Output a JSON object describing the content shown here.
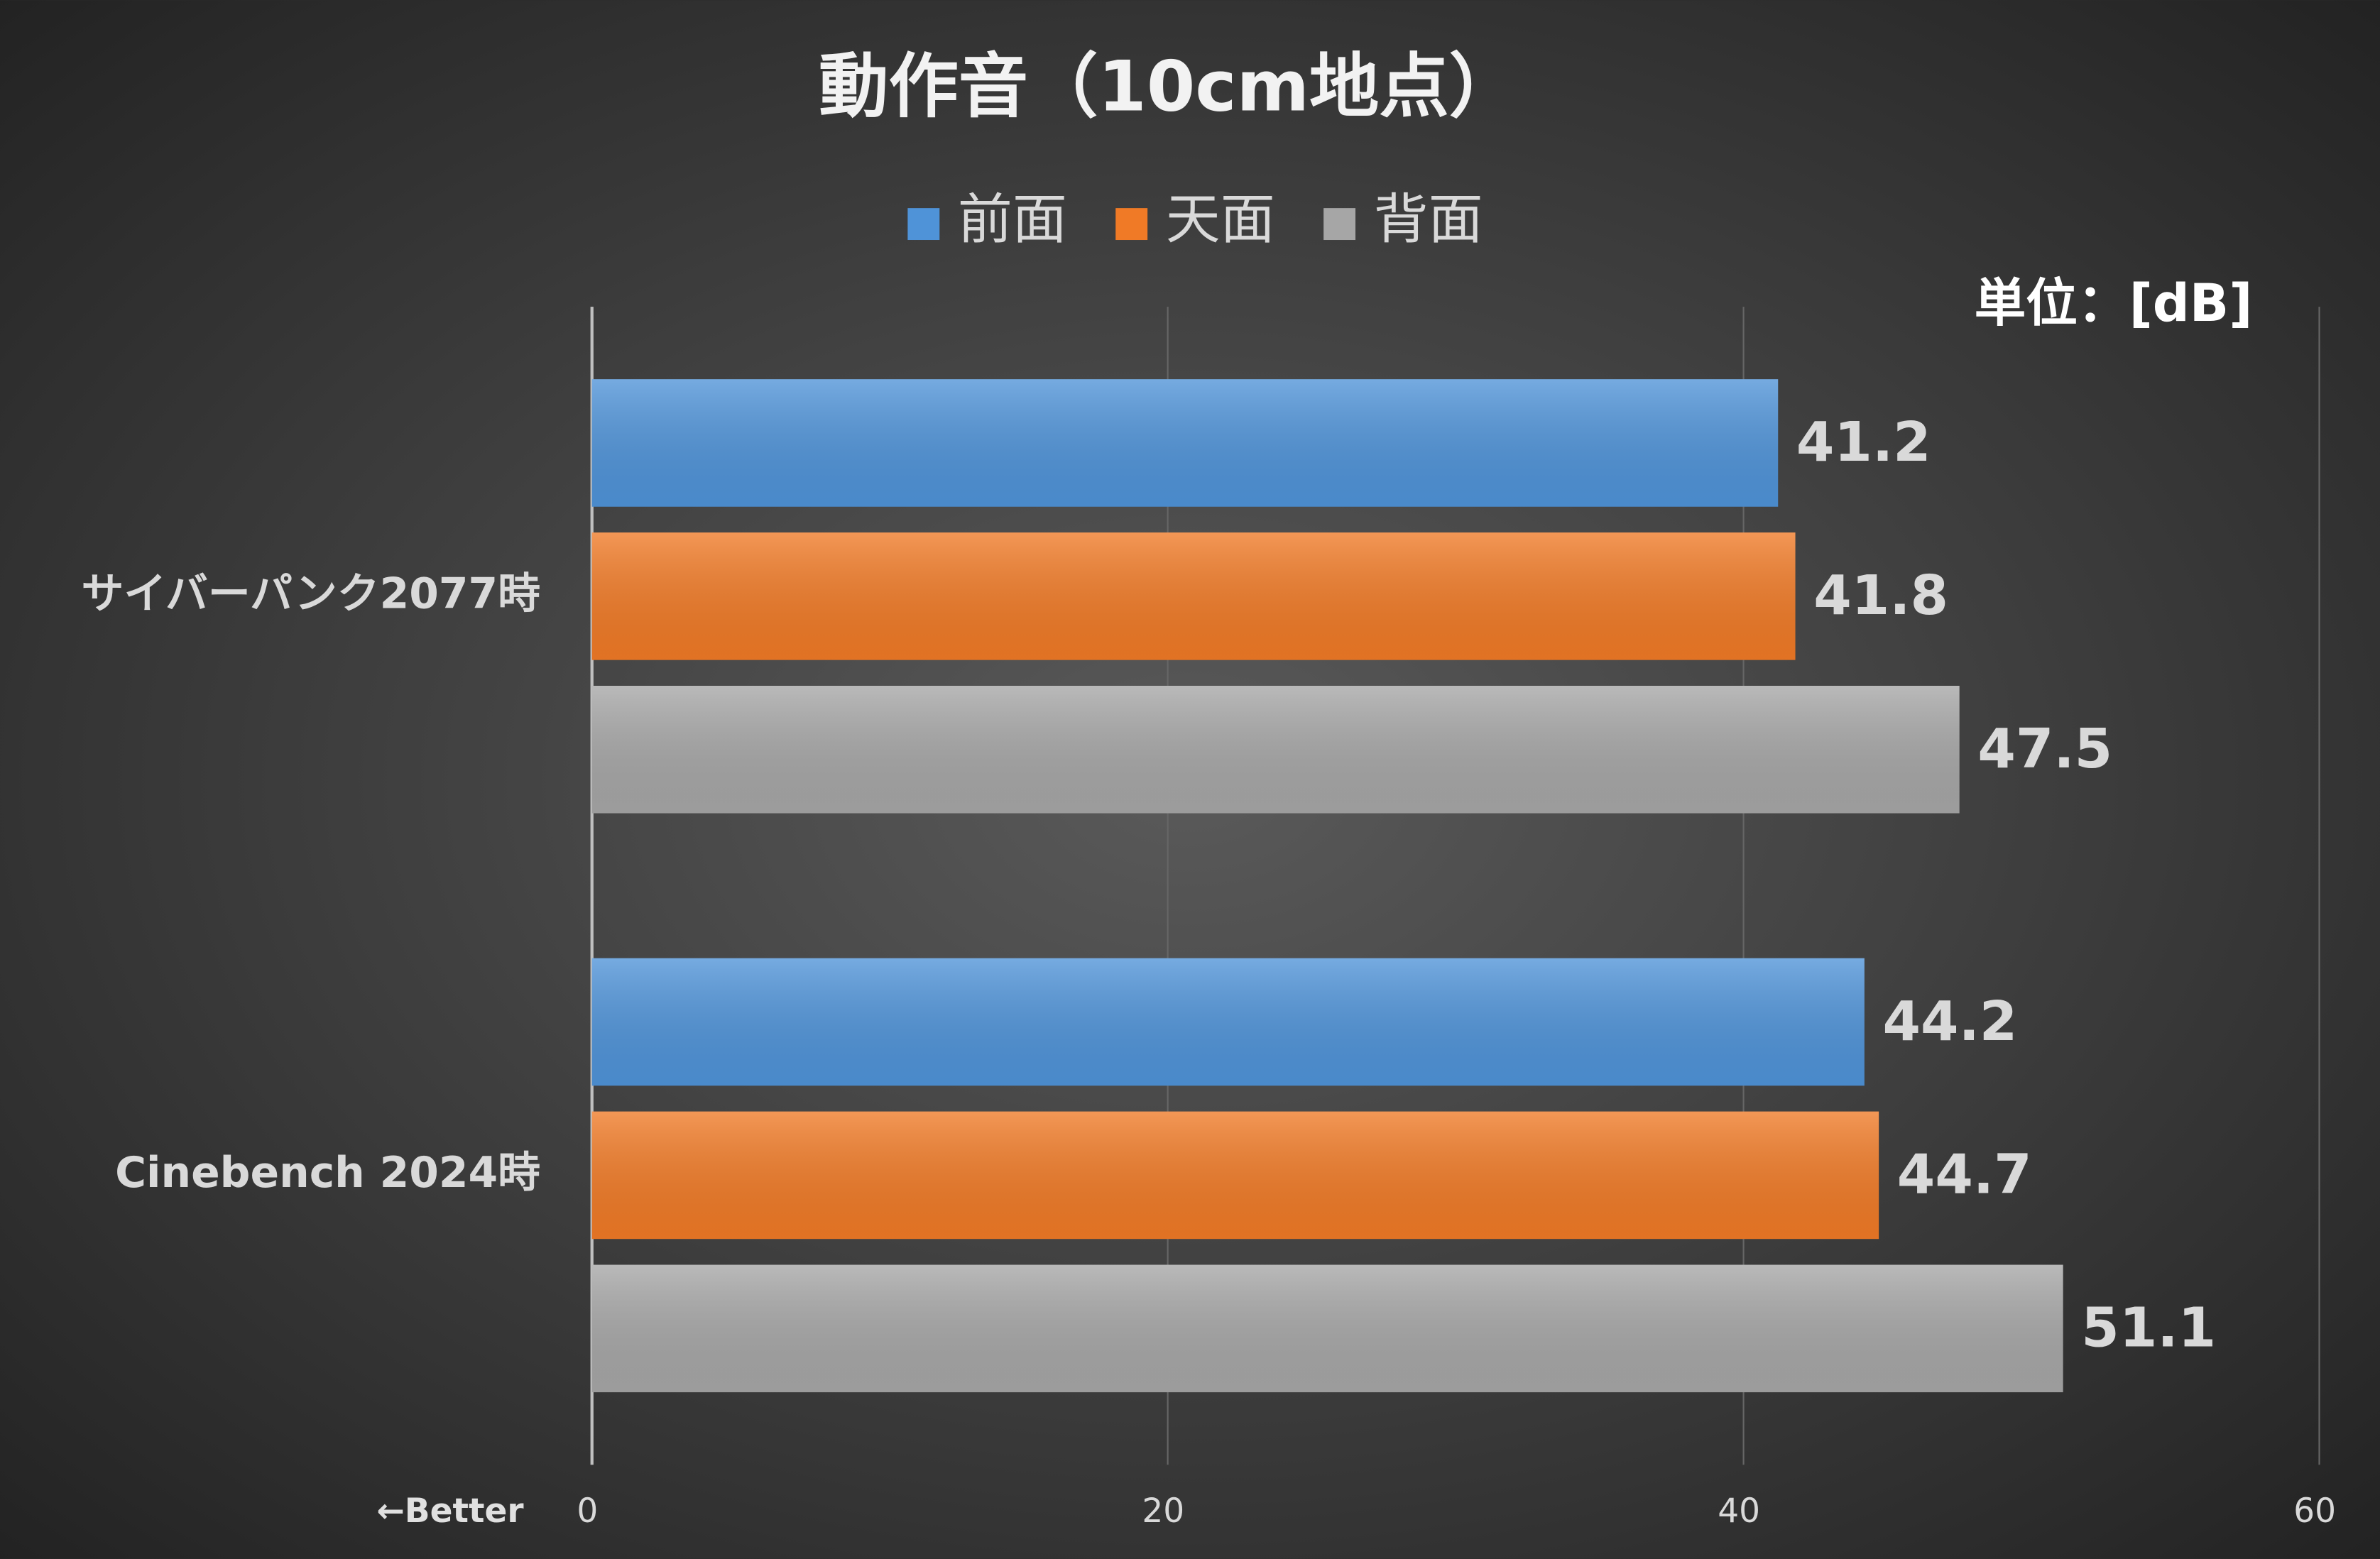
{
  "chart_data": {
    "type": "bar",
    "orientation": "horizontal",
    "title": "動作音（10cm地点）",
    "unit_label": "単位：[dB]",
    "direction_note": "←Better",
    "categories": [
      "サイバーパンク2077時",
      "Cinebench 2024時"
    ],
    "series": [
      {
        "name": "前面",
        "color": "#4f93d8",
        "values": [
          41.2,
          44.2
        ]
      },
      {
        "name": "天面",
        "color": "#f07a26",
        "values": [
          41.8,
          44.7
        ]
      },
      {
        "name": "背面",
        "color": "#a6a6a6",
        "values": [
          47.5,
          51.1
        ]
      }
    ],
    "xlim": [
      0,
      60
    ],
    "xticks": [
      0,
      20,
      40,
      60
    ],
    "grid": true,
    "legend": "top"
  }
}
